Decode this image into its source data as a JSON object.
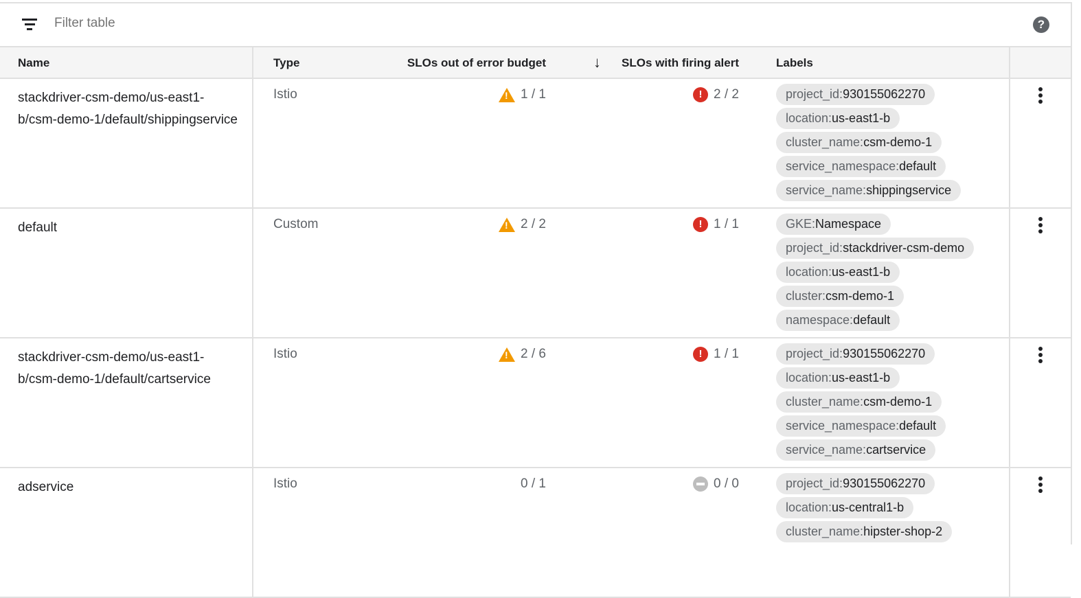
{
  "toolbar": {
    "filter_placeholder": "Filter table",
    "icons": {
      "filter": "filter-list-icon",
      "help": "help-icon"
    }
  },
  "columns": {
    "name": "Name",
    "type": "Type",
    "out_of_budget": "SLOs out of error budget",
    "firing": "SLOs with firing alert",
    "labels": "Labels",
    "sort": "arrow-down-icon"
  },
  "colors": {
    "warning": "#f29900",
    "error": "#d93025",
    "neutral": "#bdbdbd"
  },
  "rows": [
    {
      "name": "stackdriver-csm-demo/us-east1-b/csm-demo-1/default/shippingservice",
      "type": "Istio",
      "budget": "1 / 1",
      "budget_icon": "warning",
      "firing": "2 / 2",
      "firing_icon": "error",
      "labels": [
        {
          "k": "project_id:",
          "v": "930155062270"
        },
        {
          "k": "location:",
          "v": "us-east1-b"
        },
        {
          "k": "cluster_name:",
          "v": "csm-demo-1"
        },
        {
          "k": "service_namespace:",
          "v": "default"
        },
        {
          "k": "service_name:",
          "v": "shippingservice"
        }
      ]
    },
    {
      "name": "default",
      "type": "Custom",
      "budget": "2 / 2",
      "budget_icon": "warning",
      "firing": "1 / 1",
      "firing_icon": "error",
      "labels": [
        {
          "k": "GKE:",
          "v": "Namespace"
        },
        {
          "k": "project_id:",
          "v": "stackdriver-csm-demo"
        },
        {
          "k": "location:",
          "v": "us-east1-b"
        },
        {
          "k": "cluster:",
          "v": "csm-demo-1"
        },
        {
          "k": "namespace:",
          "v": "default"
        }
      ]
    },
    {
      "name": "stackdriver-csm-demo/us-east1-b/csm-demo-1/default/cartservice",
      "type": "Istio",
      "budget": "2 / 6",
      "budget_icon": "warning",
      "firing": "1 / 1",
      "firing_icon": "error",
      "labels": [
        {
          "k": "project_id:",
          "v": "930155062270"
        },
        {
          "k": "location:",
          "v": "us-east1-b"
        },
        {
          "k": "cluster_name:",
          "v": "csm-demo-1"
        },
        {
          "k": "service_namespace:",
          "v": "default"
        },
        {
          "k": "service_name:",
          "v": "cartservice"
        }
      ]
    },
    {
      "name": "adservice",
      "type": "Istio",
      "budget": "0 / 1",
      "budget_icon": "",
      "firing": "0 / 0",
      "firing_icon": "none",
      "labels": [
        {
          "k": "project_id:",
          "v": "930155062270"
        },
        {
          "k": "location:",
          "v": "us-central1-b"
        },
        {
          "k": "cluster_name:",
          "v": "hipster-shop-2"
        }
      ]
    }
  ]
}
